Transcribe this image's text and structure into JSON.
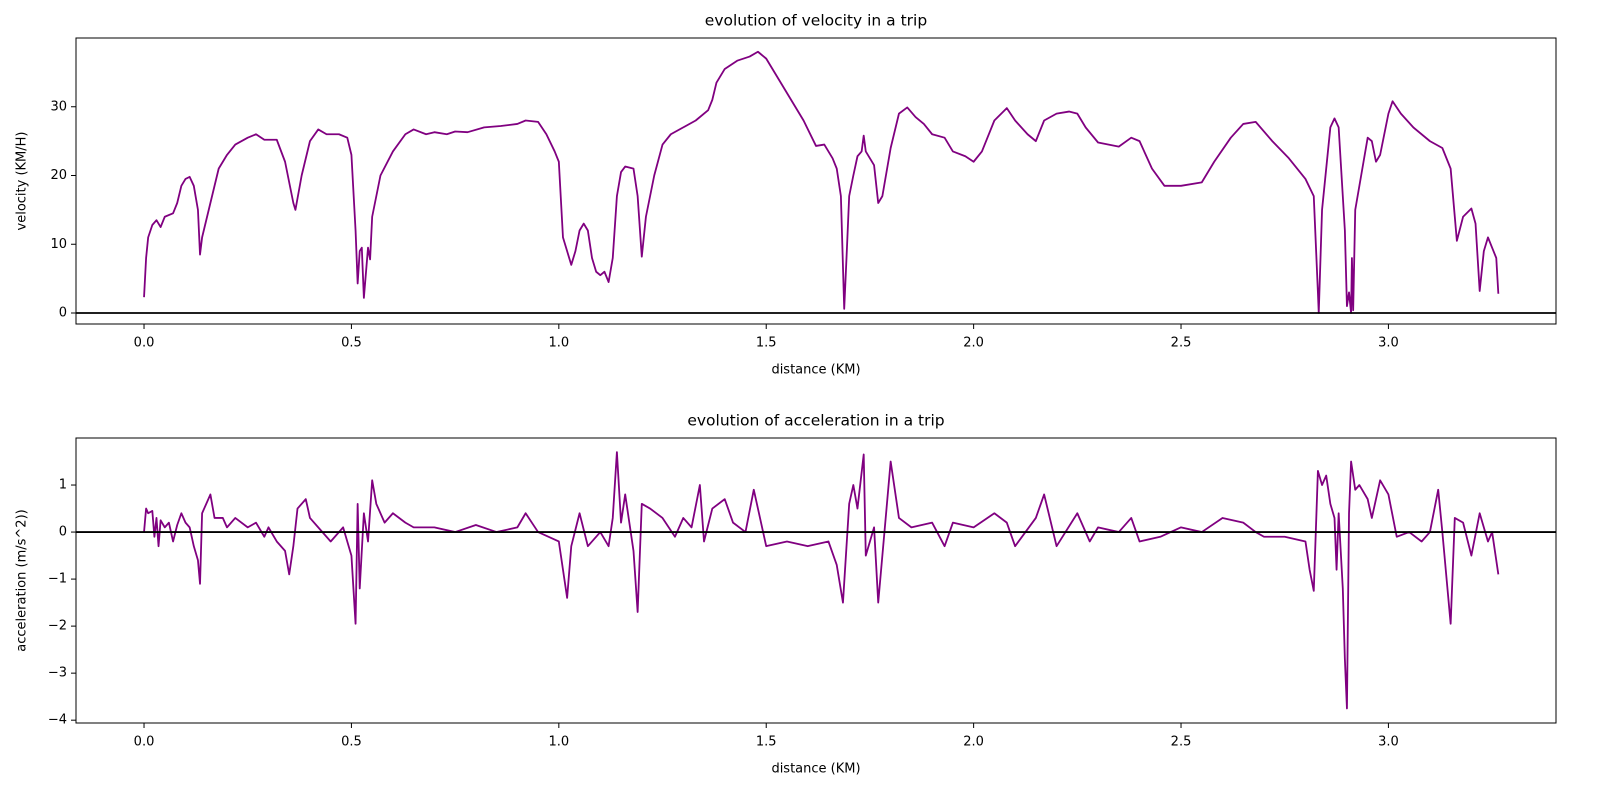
{
  "chart_data": [
    {
      "type": "line",
      "title": "evolution of velocity in a trip",
      "xlabel": "distance (KM)",
      "ylabel": "velocity (KM/H)",
      "series": [
        {
          "color": "#800080",
          "x": [
            0,
            0.005,
            0.01,
            0.02,
            0.03,
            0.04,
            0.05,
            0.07,
            0.08,
            0.09,
            0.1,
            0.11,
            0.12,
            0.13,
            0.135,
            0.14,
            0.16,
            0.18,
            0.2,
            0.22,
            0.25,
            0.27,
            0.29,
            0.32,
            0.34,
            0.36,
            0.365,
            0.38,
            0.4,
            0.42,
            0.44,
            0.47,
            0.49,
            0.5,
            0.51,
            0.515,
            0.52,
            0.525,
            0.53,
            0.54,
            0.545,
            0.55,
            0.57,
            0.6,
            0.63,
            0.65,
            0.68,
            0.7,
            0.73,
            0.75,
            0.78,
            0.82,
            0.86,
            0.9,
            0.92,
            0.95,
            0.97,
            0.99,
            1.0,
            1.01,
            1.02,
            1.03,
            1.04,
            1.05,
            1.06,
            1.07,
            1.08,
            1.09,
            1.1,
            1.11,
            1.12,
            1.13,
            1.14,
            1.15,
            1.16,
            1.18,
            1.19,
            1.2,
            1.21,
            1.23,
            1.25,
            1.27,
            1.3,
            1.33,
            1.36,
            1.37,
            1.38,
            1.4,
            1.43,
            1.46,
            1.48,
            1.5,
            1.53,
            1.56,
            1.59,
            1.62,
            1.64,
            1.66,
            1.67,
            1.68,
            1.688,
            1.695,
            1.7,
            1.71,
            1.72,
            1.73,
            1.735,
            1.74,
            1.76,
            1.77,
            1.78,
            1.8,
            1.82,
            1.84,
            1.86,
            1.88,
            1.9,
            1.93,
            1.95,
            1.98,
            2.0,
            2.02,
            2.05,
            2.08,
            2.1,
            2.13,
            2.15,
            2.17,
            2.2,
            2.23,
            2.25,
            2.27,
            2.3,
            2.35,
            2.38,
            2.4,
            2.43,
            2.46,
            2.5,
            2.55,
            2.58,
            2.62,
            2.65,
            2.68,
            2.72,
            2.76,
            2.8,
            2.82,
            2.83,
            2.832,
            2.84,
            2.86,
            2.87,
            2.88,
            2.895,
            2.9,
            2.905,
            2.91,
            2.912,
            2.915,
            2.92,
            2.94,
            2.95,
            2.96,
            2.97,
            2.98,
            3.0,
            3.01,
            3.03,
            3.06,
            3.1,
            3.13,
            3.15,
            3.16,
            3.165,
            3.18,
            3.2,
            3.21,
            3.22,
            3.23,
            3.24,
            3.25,
            3.26,
            3.265
          ],
          "values": [
            2.3,
            8,
            11,
            12.8,
            13.5,
            12.5,
            14,
            14.5,
            16,
            18.5,
            19.5,
            19.8,
            18.5,
            15,
            8.5,
            11,
            16,
            21,
            23,
            24.5,
            25.5,
            26,
            25.2,
            25.2,
            22,
            16,
            15,
            20,
            25,
            26.7,
            26,
            26,
            25.5,
            23,
            12,
            4.3,
            9,
            9.5,
            2.2,
            9.5,
            7.8,
            14,
            20,
            23.5,
            26,
            26.7,
            26,
            26.3,
            26,
            26.4,
            26.3,
            27,
            27.2,
            27.5,
            28,
            27.8,
            26,
            23.5,
            22,
            11,
            9,
            7,
            9,
            12,
            13,
            12,
            8,
            6,
            5.5,
            6,
            4.5,
            8,
            17,
            20.5,
            21.3,
            21,
            17,
            8.2,
            14,
            20,
            24.5,
            26,
            27,
            28,
            29.5,
            31,
            33.5,
            35.5,
            36.7,
            37.3,
            38,
            37,
            34,
            31,
            28,
            24.3,
            24.5,
            22.5,
            21,
            17,
            0.6,
            10,
            17,
            20,
            22.8,
            23.5,
            25.8,
            23.5,
            21.5,
            16,
            17,
            24,
            29,
            29.9,
            28.5,
            27.5,
            26,
            25.5,
            23.5,
            22.8,
            22,
            23.5,
            28,
            29.8,
            28,
            26,
            25,
            28,
            29,
            29.3,
            29,
            27,
            24.8,
            24.2,
            25.5,
            25,
            21,
            18.5,
            18.5,
            19,
            22,
            25.5,
            27.5,
            27.8,
            25,
            22.5,
            19.5,
            17,
            3,
            0,
            15,
            27,
            28.3,
            27,
            12,
            1,
            3,
            0,
            8,
            0.4,
            15,
            22,
            25.5,
            25,
            22,
            23,
            29,
            30.8,
            29,
            27,
            25,
            24,
            21,
            14,
            10.5,
            14,
            15.2,
            13,
            3.2,
            9,
            11,
            9.5,
            8,
            2.8
          ]
        }
      ],
      "xlim": [
        -0.164,
        3.404
      ],
      "xticks": [
        {
          "value": 0,
          "label": "0.0"
        },
        0.5,
        {
          "value": 1,
          "label": "1.0"
        },
        1.5,
        {
          "value": 2,
          "label": "2.0"
        },
        2.5,
        {
          "value": 3,
          "label": "3.0"
        }
      ],
      "ylim": [
        -1.6,
        40
      ],
      "yticks": [
        0,
        10,
        20,
        30
      ],
      "hline": 0
    },
    {
      "type": "line",
      "title": "evolution of acceleration in a trip",
      "xlabel": "distance (KM)",
      "ylabel": "acceleration (m/s^2))",
      "series": [
        {
          "color": "#800080",
          "x": [
            0,
            0.005,
            0.01,
            0.02,
            0.025,
            0.03,
            0.035,
            0.04,
            0.05,
            0.06,
            0.07,
            0.08,
            0.09,
            0.1,
            0.11,
            0.12,
            0.13,
            0.135,
            0.14,
            0.15,
            0.16,
            0.17,
            0.19,
            0.2,
            0.22,
            0.25,
            0.27,
            0.29,
            0.3,
            0.32,
            0.34,
            0.35,
            0.36,
            0.37,
            0.39,
            0.4,
            0.42,
            0.45,
            0.48,
            0.5,
            0.51,
            0.515,
            0.52,
            0.53,
            0.54,
            0.55,
            0.56,
            0.58,
            0.6,
            0.63,
            0.65,
            0.7,
            0.75,
            0.8,
            0.85,
            0.9,
            0.92,
            0.95,
            1.0,
            1.02,
            1.03,
            1.05,
            1.07,
            1.1,
            1.12,
            1.13,
            1.14,
            1.15,
            1.16,
            1.18,
            1.19,
            1.2,
            1.22,
            1.25,
            1.28,
            1.3,
            1.32,
            1.34,
            1.35,
            1.37,
            1.4,
            1.42,
            1.45,
            1.47,
            1.5,
            1.55,
            1.6,
            1.65,
            1.67,
            1.685,
            1.7,
            1.71,
            1.72,
            1.735,
            1.74,
            1.76,
            1.77,
            1.79,
            1.8,
            1.82,
            1.85,
            1.9,
            1.93,
            1.95,
            2.0,
            2.05,
            2.08,
            2.1,
            2.15,
            2.17,
            2.2,
            2.25,
            2.28,
            2.3,
            2.35,
            2.38,
            2.4,
            2.45,
            2.5,
            2.55,
            2.6,
            2.65,
            2.68,
            2.7,
            2.75,
            2.8,
            2.81,
            2.82,
            2.83,
            2.84,
            2.85,
            2.86,
            2.87,
            2.875,
            2.88,
            2.89,
            2.895,
            2.9,
            2.905,
            2.91,
            2.92,
            2.93,
            2.95,
            2.96,
            2.98,
            3.0,
            3.02,
            3.05,
            3.08,
            3.1,
            3.12,
            3.13,
            3.15,
            3.16,
            3.18,
            3.2,
            3.22,
            3.24,
            3.25,
            3.265
          ],
          "values": [
            0,
            0.5,
            0.4,
            0.45,
            -0.1,
            0.3,
            -0.3,
            0.25,
            0.1,
            0.2,
            -0.2,
            0.15,
            0.4,
            0.2,
            0.1,
            -0.3,
            -0.6,
            -1.1,
            0.4,
            0.6,
            0.8,
            0.3,
            0.3,
            0.1,
            0.3,
            0.1,
            0.2,
            -0.1,
            0.1,
            -0.2,
            -0.4,
            -0.9,
            -0.3,
            0.5,
            0.7,
            0.3,
            0.1,
            -0.2,
            0.1,
            -0.5,
            -1.95,
            0.6,
            -1.2,
            0.4,
            -0.2,
            1.1,
            0.6,
            0.2,
            0.4,
            0.2,
            0.1,
            0.1,
            0,
            0.15,
            0,
            0.1,
            0.4,
            0,
            -0.2,
            -1.4,
            -0.3,
            0.4,
            -0.3,
            0,
            -0.3,
            0.3,
            1.7,
            0.2,
            0.8,
            -0.4,
            -1.7,
            0.6,
            0.5,
            0.3,
            -0.1,
            0.3,
            0.1,
            1,
            -0.2,
            0.5,
            0.7,
            0.2,
            0,
            0.9,
            -0.3,
            -0.2,
            -0.3,
            -0.2,
            -0.7,
            -1.5,
            0.6,
            1,
            0.5,
            1.65,
            -0.5,
            0.1,
            -1.5,
            0.5,
            1.5,
            0.3,
            0.1,
            0.2,
            -0.3,
            0.2,
            0.1,
            0.4,
            0.2,
            -0.3,
            0.3,
            0.8,
            -0.3,
            0.4,
            -0.2,
            0.1,
            0,
            0.3,
            -0.2,
            -0.1,
            0.1,
            0,
            0.3,
            0.2,
            0,
            -0.1,
            -0.1,
            -0.2,
            -0.8,
            -1.25,
            1.3,
            1,
            1.2,
            0.6,
            0.3,
            -0.8,
            0.4,
            -1.2,
            -2.7,
            -3.75,
            0.4,
            1.5,
            0.9,
            1,
            0.7,
            0.3,
            1.1,
            0.8,
            -0.1,
            0,
            -0.2,
            0,
            0.9,
            0,
            -1.95,
            0.3,
            0.2,
            -0.5,
            0.4,
            -0.2,
            0,
            -0.9
          ]
        }
      ],
      "xlim": [
        -0.164,
        3.404
      ],
      "xticks": [
        {
          "value": 0,
          "label": "0.0"
        },
        0.5,
        {
          "value": 1,
          "label": "1.0"
        },
        1.5,
        {
          "value": 2,
          "label": "2.0"
        },
        2.5,
        {
          "value": 3,
          "label": "3.0"
        }
      ],
      "ylim": [
        -4.06,
        2.0
      ],
      "yticks": [
        {
          "value": -4,
          "label": "−4"
        },
        {
          "value": -3,
          "label": "−3"
        },
        {
          "value": -2,
          "label": "−2"
        },
        {
          "value": -1,
          "label": "−1"
        },
        0,
        1
      ],
      "hline": 0
    }
  ]
}
